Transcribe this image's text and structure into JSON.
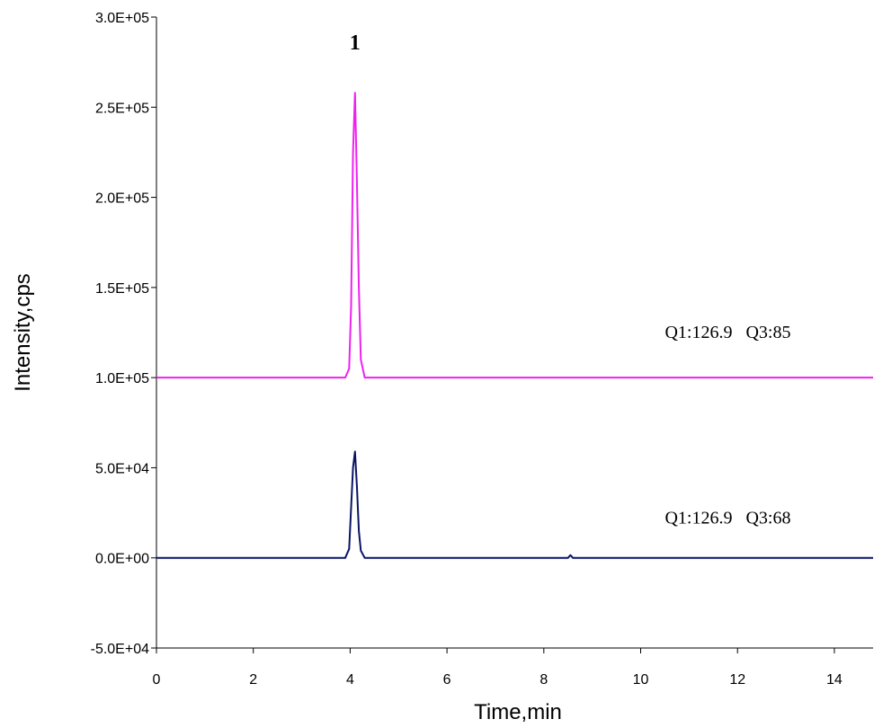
{
  "chart_data": {
    "type": "line",
    "xlabel": "Time,min",
    "ylabel": "Intensity,cps",
    "xlim": [
      0,
      14.8
    ],
    "ylim": [
      -50000,
      300000
    ],
    "x_ticks": [
      0,
      2,
      4,
      6,
      8,
      10,
      12,
      14
    ],
    "x_tick_labels": [
      "0",
      "2",
      "4",
      "6",
      "8",
      "10",
      "12",
      "14"
    ],
    "y_ticks": [
      -50000,
      0,
      50000,
      100000,
      150000,
      200000,
      250000,
      300000
    ],
    "y_tick_labels": [
      "-5.0E+04",
      "0.0E+00",
      "5.0E+04",
      "1.0E+05",
      "1.5E+05",
      "2.0E+05",
      "2.5E+05",
      "3.0E+05"
    ],
    "grid": false,
    "series": [
      {
        "name": "Q1:126.9   Q3:85",
        "color": "#ee22ee",
        "x": [
          0,
          3.9,
          3.98,
          4.02,
          4.06,
          4.1,
          4.14,
          4.18,
          4.22,
          4.3,
          14.8
        ],
        "y": [
          100000,
          100000,
          105000,
          140000,
          225000,
          258000,
          210000,
          150000,
          110000,
          100000,
          100000
        ]
      },
      {
        "name": "Q1:126.9   Q3:68",
        "color": "#0a1464",
        "x": [
          0,
          3.9,
          3.98,
          4.02,
          4.06,
          4.1,
          4.14,
          4.18,
          4.22,
          4.3,
          8.5,
          8.55,
          8.6,
          14.8
        ],
        "y": [
          0,
          0,
          5000,
          28000,
          50000,
          59000,
          40000,
          15000,
          4000,
          0,
          0,
          1500,
          0,
          0
        ]
      }
    ],
    "annotations": [
      {
        "text": "1",
        "x": 4.1,
        "y": 282000,
        "style": "peak"
      },
      {
        "text": "Q1:126.9   Q3:85",
        "x": 11.8,
        "y": 122000,
        "style": "label"
      },
      {
        "text": "Q1:126.9   Q3:68",
        "x": 11.8,
        "y": 19000,
        "style": "label"
      }
    ]
  }
}
